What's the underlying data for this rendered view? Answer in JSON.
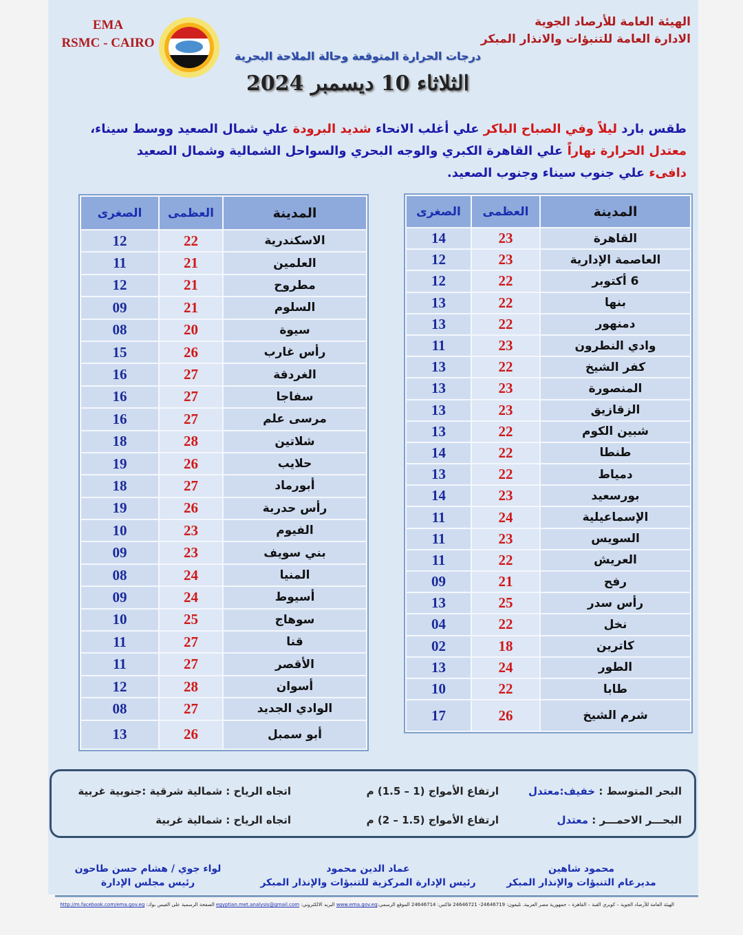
{
  "header": {
    "org_line1": "الهيئة العامة للأرصاد الجوية",
    "org_line2": "الادارة العامة للتنبؤات والانذار المبكر",
    "ema": "EMA",
    "rsmc": "RSMC - CAIRO",
    "logo_text": "EMA",
    "subtitle": "درجات الحرارة المتوقعة وحالة الملاحة البحرية",
    "date": "الثلاثاء 10 ديسمبر 2024"
  },
  "summary": {
    "l1": [
      {
        "t": "طقس بارد ",
        "c": "b"
      },
      {
        "t": "ليلاً وفي الصباح الباكر",
        "c": "r"
      },
      {
        "t": " علي أغلب الانحاء ",
        "c": "b"
      },
      {
        "t": "شديد البرودة",
        "c": "r"
      },
      {
        "t": " علي شمال الصعيد ووسط سيناء،",
        "c": "b"
      }
    ],
    "l2": [
      {
        "t": "معتدل الحرارة نهاراً",
        "c": "r"
      },
      {
        "t": " علي القاهرة الكبري والوجه البحري والسواحل الشمالية وشمال الصعيد",
        "c": "b"
      }
    ],
    "l3": [
      {
        "t": "دافىء",
        "c": "r"
      },
      {
        "t": " علي جنوب سيناء وجنوب الصعيد.",
        "c": "b"
      }
    ]
  },
  "table_headers": {
    "city": "المدينة",
    "max": "العظمى",
    "min": "الصغرى"
  },
  "right_table": [
    [
      "القاهرة",
      "23",
      "14"
    ],
    [
      "العاصمة الإدارية",
      "23",
      "12"
    ],
    [
      "6 أكتوبر",
      "22",
      "12"
    ],
    [
      "بنها",
      "22",
      "13"
    ],
    [
      "دمنهور",
      "22",
      "13"
    ],
    [
      "وادي النطرون",
      "23",
      "11"
    ],
    [
      "كفر الشيخ",
      "22",
      "13"
    ],
    [
      "المنصورة",
      "23",
      "13"
    ],
    [
      "الزقازيق",
      "23",
      "13"
    ],
    [
      "شبين الكوم",
      "22",
      "13"
    ],
    [
      "طنطا",
      "22",
      "14"
    ],
    [
      "دمياط",
      "22",
      "13"
    ],
    [
      "بورسعيد",
      "23",
      "14"
    ],
    [
      "الإسماعيلية",
      "24",
      "11"
    ],
    [
      "السويس",
      "23",
      "11"
    ],
    [
      "العريش",
      "22",
      "11"
    ],
    [
      "رفح",
      "21",
      "09"
    ],
    [
      "رأس سدر",
      "25",
      "13"
    ],
    [
      "نخل",
      "22",
      "04"
    ],
    [
      "كاترين",
      "18",
      "02"
    ],
    [
      "الطور",
      "24",
      "13"
    ],
    [
      "طابا",
      "22",
      "10"
    ],
    [
      "شرم الشيخ",
      "26",
      "17"
    ]
  ],
  "left_table": [
    [
      "الاسكندرية",
      "22",
      "12"
    ],
    [
      "العلمين",
      "21",
      "11"
    ],
    [
      "مطروح",
      "21",
      "12"
    ],
    [
      "السلوم",
      "21",
      "09"
    ],
    [
      "سيوة",
      "20",
      "08"
    ],
    [
      "رأس غارب",
      "26",
      "15"
    ],
    [
      "الغردقة",
      "27",
      "16"
    ],
    [
      "سفاجا",
      "27",
      "16"
    ],
    [
      "مرسى علم",
      "27",
      "16"
    ],
    [
      "شلاتين",
      "28",
      "18"
    ],
    [
      "حلايب",
      "26",
      "19"
    ],
    [
      "أبورماد",
      "27",
      "18"
    ],
    [
      "رأس حدربة",
      "26",
      "19"
    ],
    [
      "الفيوم",
      "23",
      "10"
    ],
    [
      "بني سويف",
      "23",
      "09"
    ],
    [
      "المنيا",
      "24",
      "08"
    ],
    [
      "أسيوط",
      "24",
      "09"
    ],
    [
      "سوهاج",
      "25",
      "10"
    ],
    [
      "قنا",
      "27",
      "11"
    ],
    [
      "الأقصر",
      "27",
      "11"
    ],
    [
      "أسوان",
      "28",
      "12"
    ],
    [
      "الوادي الجديد",
      "27",
      "08"
    ],
    [
      "أبو سمبل",
      "26",
      "13"
    ]
  ],
  "sea": {
    "med_label": "البحر المتوسط : ",
    "med_state": "خفيف:معتدل",
    "med_waves": "ارتفاع الأمواج (1 – 1.5) م",
    "med_wind": "اتجاه الرياح : شمالية شرقية :جنوبية غربية",
    "red_label": "البحـــر الاحمـــر : ",
    "red_state": "معتدل",
    "red_waves": "ارتفاع الأمواج (1.5 – 2) م",
    "red_wind": "اتجاه الرياح : شمالية غربية"
  },
  "signatures": [
    {
      "name": "محمود شاهين",
      "title": "مديرعام التنبؤات والإنذار المبكر"
    },
    {
      "name": "عماد الدين محمود",
      "title": "رئيس الإدارة المركزية للتنبؤات والإنذار المبكر"
    },
    {
      "name": "لواء جوي / هشام حسن طاحون",
      "title": "رئيس مجلس الإدارة"
    }
  ],
  "footer": {
    "address": "الهيئة العامة للأرصاد الجوية – كوبري القبة – القاهرة – جمهورية مصر العربية. تليفون: 24646719- 24646721 فاكس: 24646714 الموقع الرسمي:",
    "website": "www.ema.gov.eg",
    "email_label": " البريد الالكتروني: ",
    "email": "egyptian.met.analysis@gmail.com",
    "fb_label": " الصفحة الرسمية على الفيس بوك: ",
    "facebook": "http://m.facebook.com/ema.gov.eg"
  },
  "colors": {
    "page_bg": "#dde8f5",
    "header_row": "#8eaadc",
    "max_temp": "#d01818",
    "min_temp": "#1a2a9a",
    "org_title": "#b01c1c"
  }
}
